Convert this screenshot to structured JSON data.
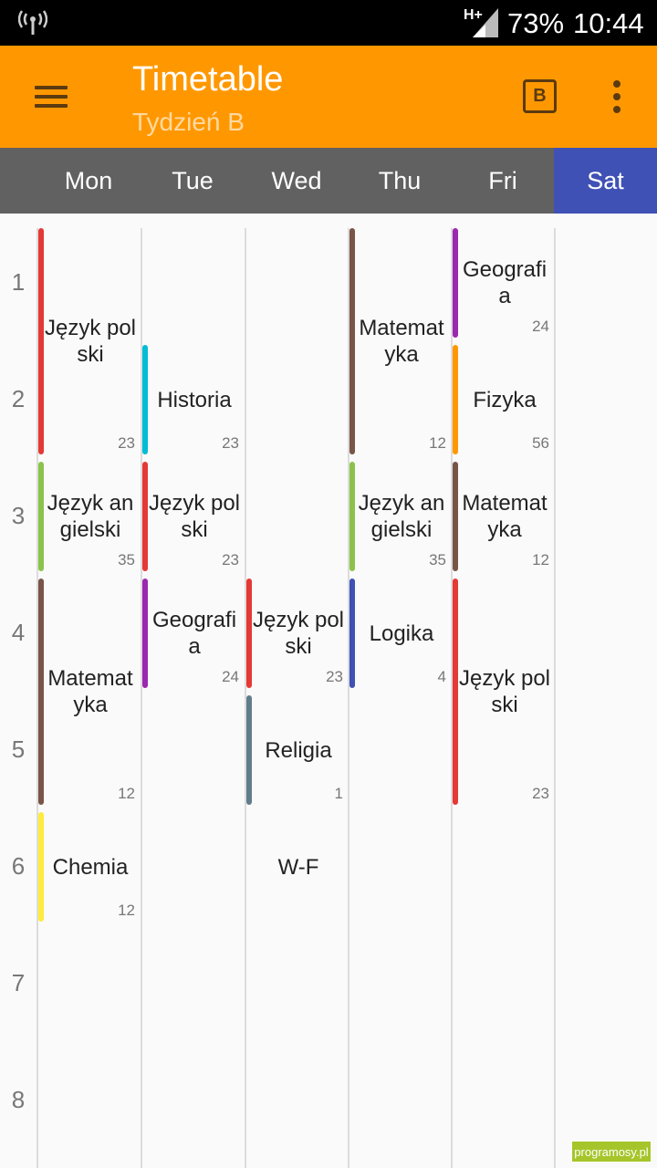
{
  "status_bar": {
    "network": "H+",
    "battery": "73%",
    "time": "10:44"
  },
  "app_bar": {
    "title": "Timetable",
    "subtitle": "Tydzień B",
    "week_badge": "B",
    "menu_icon": "hamburger-menu-icon",
    "overflow_icon": "more-vert-icon"
  },
  "days": [
    "Mon",
    "Tue",
    "Wed",
    "Thu",
    "Fri",
    "Sat"
  ],
  "selected_day": "Sat",
  "periods": [
    "1",
    "2",
    "3",
    "4",
    "5",
    "6",
    "7",
    "8"
  ],
  "lessons": [
    {
      "day": 0,
      "period": 1,
      "length": 2,
      "subject": "Język polski",
      "room": "23",
      "color": "#e53935"
    },
    {
      "day": 0,
      "period": 3,
      "length": 1,
      "subject": "Język angielski",
      "room": "35",
      "color": "#8bc34a"
    },
    {
      "day": 0,
      "period": 4,
      "length": 2,
      "subject": "Matematyka",
      "room": "12",
      "color": "#795548"
    },
    {
      "day": 0,
      "period": 6,
      "length": 1,
      "subject": "Chemia",
      "room": "12",
      "color": "#ffeb3b"
    },
    {
      "day": 1,
      "period": 2,
      "length": 1,
      "subject": "Historia",
      "room": "23",
      "color": "#00bcd4"
    },
    {
      "day": 1,
      "period": 3,
      "length": 1,
      "subject": "Język polski",
      "room": "23",
      "color": "#e53935"
    },
    {
      "day": 1,
      "period": 4,
      "length": 1,
      "subject": "Geografia",
      "room": "24",
      "color": "#9c27b0"
    },
    {
      "day": 2,
      "period": 4,
      "length": 1,
      "subject": "Język polski",
      "room": "23",
      "color": "#e53935"
    },
    {
      "day": 2,
      "period": 5,
      "length": 1,
      "subject": "Religia",
      "room": "1",
      "color": "#607d8b"
    },
    {
      "day": 2,
      "period": 6,
      "length": 1,
      "subject": "W-F",
      "room": "",
      "color": ""
    },
    {
      "day": 3,
      "period": 1,
      "length": 2,
      "subject": "Matematyka",
      "room": "12",
      "color": "#795548"
    },
    {
      "day": 3,
      "period": 3,
      "length": 1,
      "subject": "Język angielski",
      "room": "35",
      "color": "#8bc34a"
    },
    {
      "day": 3,
      "period": 4,
      "length": 1,
      "subject": "Logika",
      "room": "4",
      "color": "#3f51b5"
    },
    {
      "day": 4,
      "period": 1,
      "length": 1,
      "subject": "Geografia",
      "room": "24",
      "color": "#9c27b0"
    },
    {
      "day": 4,
      "period": 2,
      "length": 1,
      "subject": "Fizyka",
      "room": "56",
      "color": "#ff9800"
    },
    {
      "day": 4,
      "period": 3,
      "length": 1,
      "subject": "Matematyka",
      "room": "12",
      "color": "#795548"
    },
    {
      "day": 4,
      "period": 4,
      "length": 2,
      "subject": "Język polski",
      "room": "23",
      "color": "#e53935"
    }
  ],
  "watermark": "programosy.pl",
  "colors": {
    "app_bar": "#ff9800",
    "day_header": "#616161",
    "selected_day": "#3f51b5"
  }
}
